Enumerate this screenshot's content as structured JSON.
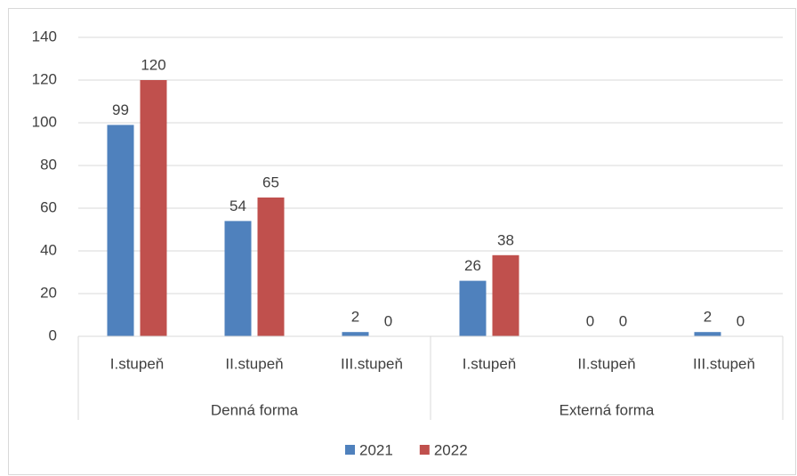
{
  "chart_data": {
    "type": "bar",
    "groups": [
      {
        "label": "Denná forma",
        "categories": [
          "I.stupeň",
          "II.stupeň",
          "III.stupeň"
        ]
      },
      {
        "label": "Externá forma",
        "categories": [
          "I.stupeň",
          "II.stupeň",
          "III.stupeň"
        ]
      }
    ],
    "series": [
      {
        "name": "2021",
        "color": "#4f81bd",
        "values": [
          99,
          54,
          2,
          26,
          0,
          2
        ]
      },
      {
        "name": "2022",
        "color": "#c0504d",
        "values": [
          120,
          65,
          0,
          38,
          0,
          0
        ]
      }
    ],
    "ylim": [
      0,
      140
    ],
    "yticks": [
      0,
      20,
      40,
      60,
      80,
      100,
      120,
      140
    ],
    "grid": true,
    "legend": "bottom"
  }
}
